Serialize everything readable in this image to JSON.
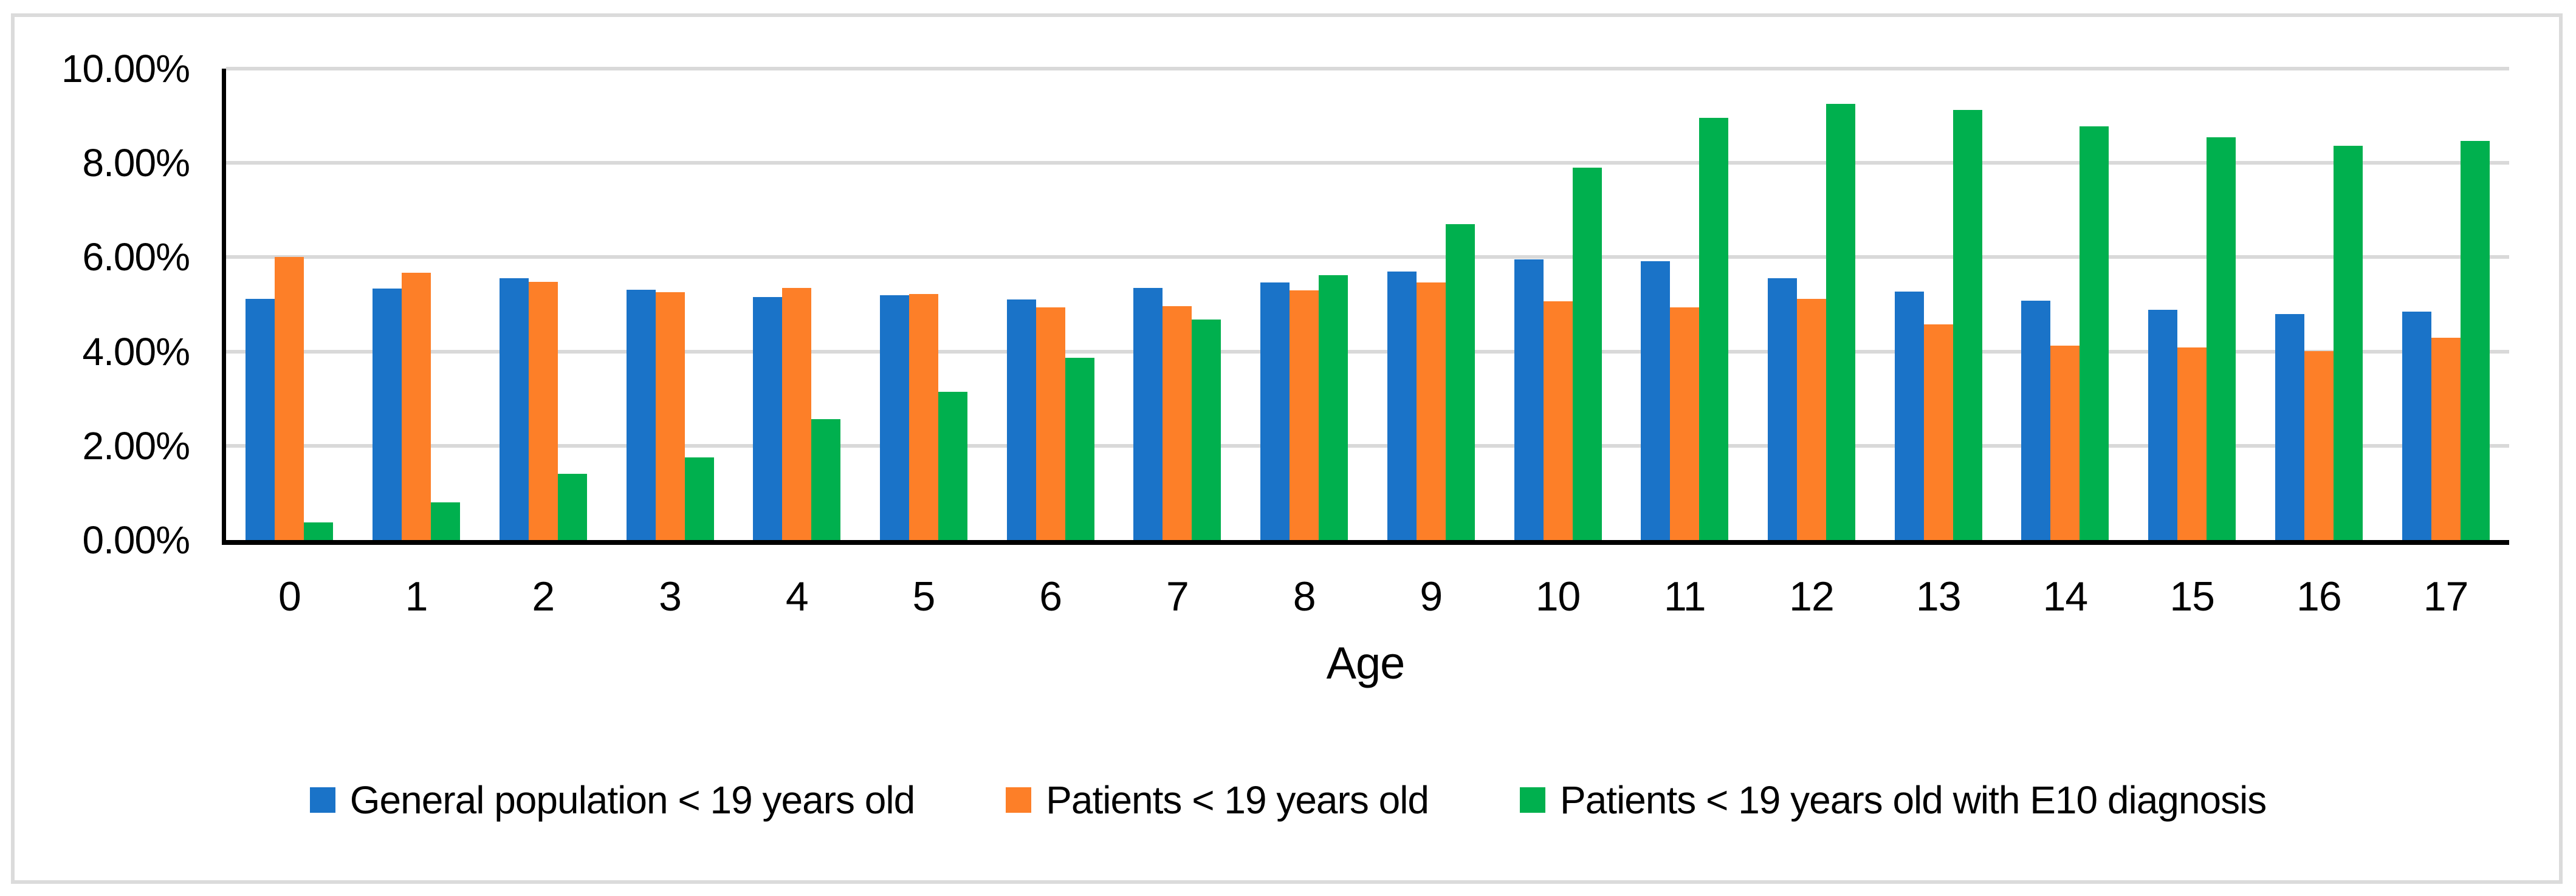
{
  "figure": {
    "background": "#FFFFFF",
    "border_color": "#DBDBDB",
    "gridline_color": "#D9D9D9",
    "axis_color": "#000000"
  },
  "chart_data": {
    "type": "bar",
    "title": "",
    "xlabel": "Age",
    "ylabel": "",
    "categories": [
      "0",
      "1",
      "2",
      "3",
      "4",
      "5",
      "6",
      "7",
      "8",
      "9",
      "10",
      "11",
      "12",
      "13",
      "14",
      "15",
      "16",
      "17"
    ],
    "series": [
      {
        "name": "General population < 19 years old",
        "color": "#1A73C8",
        "values": [
          5.12,
          5.33,
          5.55,
          5.31,
          5.15,
          5.19,
          5.1,
          5.35,
          5.47,
          5.7,
          5.95,
          5.92,
          5.55,
          5.27,
          5.08,
          4.88,
          4.79,
          4.85
        ]
      },
      {
        "name": "Patients < 19 years old",
        "color": "#FD7F28",
        "values": [
          6.01,
          5.67,
          5.48,
          5.26,
          5.35,
          5.22,
          4.94,
          4.96,
          5.3,
          5.46,
          5.06,
          4.93,
          5.11,
          4.57,
          4.12,
          4.08,
          4.01,
          4.29
        ]
      },
      {
        "name": "Patients < 19 years old with E10 diagnosis",
        "color": "#00B04E",
        "values": [
          0.38,
          0.8,
          1.4,
          1.75,
          2.57,
          3.15,
          3.87,
          4.68,
          5.62,
          6.7,
          7.9,
          8.96,
          9.25,
          9.12,
          8.77,
          8.55,
          8.36,
          8.47
        ]
      }
    ],
    "ylim": [
      0,
      10
    ],
    "ytick_values": [
      0,
      2,
      4,
      6,
      8,
      10
    ],
    "yticks": [
      "0.00%",
      "2.00%",
      "4.00%",
      "6.00%",
      "8.00%",
      "10.00%"
    ],
    "grid": true,
    "legend_position": "bottom"
  }
}
